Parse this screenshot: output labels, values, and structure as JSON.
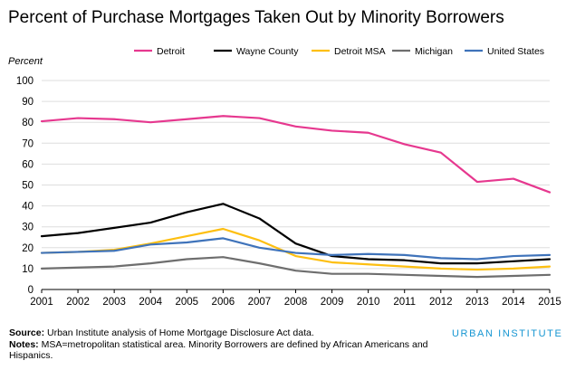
{
  "title": "Percent of Purchase Mortgages Taken Out by Minority Borrowers",
  "footer": {
    "source_label": "Source:",
    "source_text": "Urban Institute analysis of Home Mortgage Disclosure Act data.",
    "notes_label": "Notes:",
    "notes_text": "MSA=metropolitan statistical area. Minority Borrowers are defined by African Americans and Hispanics."
  },
  "brand": {
    "name": "URBAN INSTITUTE",
    "color": "#1696d2"
  },
  "chart_data": {
    "type": "line",
    "title": "Percent of Purchase Mortgages Taken Out by Minority Borrowers",
    "xlabel": "",
    "ylabel": "Percent",
    "ylim": [
      0,
      100
    ],
    "yticks": [
      0,
      10,
      20,
      30,
      40,
      50,
      60,
      70,
      80,
      90,
      100
    ],
    "x": [
      2001,
      2002,
      2003,
      2004,
      2005,
      2006,
      2007,
      2008,
      2009,
      2010,
      2011,
      2012,
      2013,
      2014,
      2015
    ],
    "grid": "horizontal",
    "legend_position": "top",
    "series": [
      {
        "name": "Detroit",
        "color": "#e6388f",
        "values": [
          80.5,
          82,
          81.5,
          80,
          81.5,
          83,
          82,
          78,
          76,
          75,
          69.5,
          65.5,
          51.5,
          53,
          46.5
        ]
      },
      {
        "name": "Wayne County",
        "color": "#000000",
        "values": [
          25.5,
          27,
          29.5,
          32,
          37,
          41,
          34,
          22,
          16,
          14.5,
          14,
          12.5,
          12.5,
          13.5,
          14.5
        ]
      },
      {
        "name": "Detroit MSA",
        "color": "#fdbf11",
        "values": [
          17.5,
          18,
          19,
          22,
          25.5,
          29,
          23.5,
          16,
          13,
          12,
          11,
          10,
          9.5,
          10,
          11
        ]
      },
      {
        "name": "Michigan",
        "color": "#6e6e6e",
        "values": [
          10,
          10.5,
          11,
          12.5,
          14.5,
          15.5,
          12.5,
          9,
          7.5,
          7.5,
          7,
          6.5,
          6,
          6.5,
          7
        ]
      },
      {
        "name": "United States",
        "color": "#3f73ba",
        "values": [
          17.5,
          18,
          18.5,
          21.5,
          22.5,
          24.5,
          20,
          17.5,
          16.5,
          17,
          16.5,
          15,
          14.5,
          16,
          16.5
        ]
      }
    ]
  }
}
